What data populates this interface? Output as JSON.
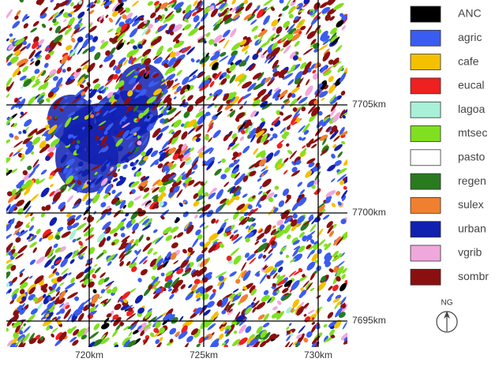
{
  "map": {
    "easting_ticks": [
      {
        "value": 720,
        "label": "720km"
      },
      {
        "value": 725,
        "label": "725km"
      },
      {
        "value": 730,
        "label": "730km"
      }
    ],
    "northing_ticks": [
      {
        "value": 7705,
        "label": "7705km"
      },
      {
        "value": 7700,
        "label": "7700km"
      },
      {
        "value": 7695,
        "label": "7695km"
      }
    ],
    "north_label": "NG",
    "legend": [
      {
        "name": "ANC",
        "color": "#000000"
      },
      {
        "name": "agric",
        "color": "#3a5cf0"
      },
      {
        "name": "cafe",
        "color": "#f5c000"
      },
      {
        "name": "eucal",
        "color": "#ee2020"
      },
      {
        "name": "lagoa",
        "color": "#a8f0d8"
      },
      {
        "name": "mtsec",
        "color": "#80e020"
      },
      {
        "name": "pasto",
        "color": "#ffffff"
      },
      {
        "name": "regen",
        "color": "#2a7a20"
      },
      {
        "name": "sulex",
        "color": "#f08030"
      },
      {
        "name": "urban",
        "color": "#1020b0"
      },
      {
        "name": "vgrib",
        "color": "#f0a8dc"
      },
      {
        "name": "sombr",
        "color": "#8a1010"
      }
    ]
  }
}
